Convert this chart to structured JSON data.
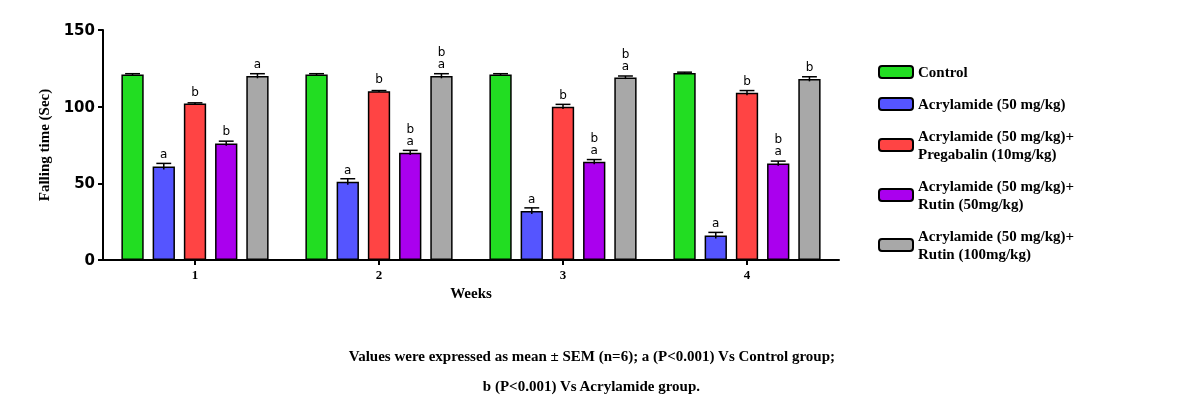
{
  "chart_data": {
    "type": "bar",
    "xlabel": "Weeks",
    "ylabel": "Falling time (Sec)",
    "categories": [
      "1",
      "2",
      "3",
      "4"
    ],
    "series": [
      {
        "name": "Control",
        "color": "#22dd22",
        "values": [
          121,
          121,
          121,
          122
        ],
        "errors": [
          0.5,
          0.5,
          0.5,
          0.5
        ]
      },
      {
        "name": "Acrylamide (50 mg/kg)",
        "color": "#5555ff",
        "values": [
          61,
          51,
          32,
          16
        ],
        "errors": [
          2,
          2,
          2,
          2
        ],
        "value_labels": [
          "a",
          "a",
          "a",
          "a"
        ]
      },
      {
        "name": "Acrylamide (50 mg/kg)+ Pregabalin (10mg/kg)",
        "color": "#ff4444",
        "values": [
          102,
          110,
          100,
          109
        ],
        "errors": [
          0.5,
          0.5,
          1.5,
          1.5
        ],
        "value_labels": [
          "b",
          "b",
          "b",
          "b"
        ]
      },
      {
        "name": "Acrylamide (50 mg/kg)+ Rutin (50mg/kg)",
        "color": "#aa00ee",
        "values": [
          76,
          70,
          64,
          63
        ],
        "errors": [
          1.5,
          1.5,
          1.5,
          1.5
        ],
        "value_labels": [
          "b",
          "b\na",
          "b\na",
          "b\na"
        ]
      },
      {
        "name": "Acrylamide (50 mg/kg)+ Rutin (100mg/kg)",
        "color": "#a8a8a8",
        "values": [
          120,
          120,
          119,
          118
        ],
        "errors": [
          1.5,
          1.5,
          1,
          1.5
        ],
        "value_labels": [
          "a",
          "b\na",
          "b\na",
          "b"
        ]
      }
    ],
    "ylim": [
      0,
      150
    ],
    "yticks": [
      0,
      50,
      100,
      150
    ],
    "grid": false,
    "legend": "right",
    "annotations": [
      "Values were expressed as mean ± SEM (n=6); a (P<0.001) Vs Control group;",
      "b (P<0.001) Vs Acrylamide group."
    ]
  }
}
